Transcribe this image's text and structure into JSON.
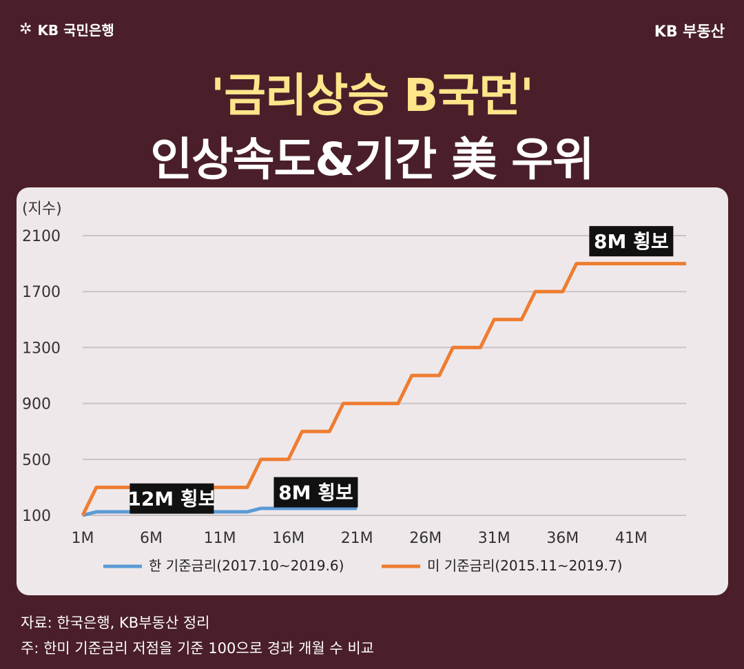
{
  "header": {
    "brand_left": "KB 국민은행",
    "brand_right": "KB 부동산",
    "title_line1": "'금리상승 B국면'",
    "title_line2": "인상속도&기간 美 우위"
  },
  "footer": {
    "source": "자료: 한국은행, KB부동산 정리",
    "note": "주: 한미 기준금리 저점을 기준 100으로 경과 개월 수 비교"
  },
  "colors": {
    "background": "#4a1f2a",
    "title_accent": "#fde58a",
    "korea": "#5b9bd5",
    "us": "#ed7d31"
  },
  "chart_data": {
    "type": "line",
    "ylabel": "(지수)",
    "ylim": [
      100,
      2100
    ],
    "yticks": [
      "100",
      "500",
      "900",
      "1300",
      "1700",
      "2100"
    ],
    "xticks": [
      "1M",
      "6M",
      "11M",
      "16M",
      "21M",
      "26M",
      "31M",
      "36M",
      "41M"
    ],
    "series": [
      {
        "name": "한 기준금리(2017.10~2019.6)",
        "x": [
          1,
          2,
          13,
          14,
          21
        ],
        "values": [
          100,
          125,
          125,
          150,
          150
        ]
      },
      {
        "name": "미 기준금리(2015.11~2019.7)",
        "x": [
          1,
          2,
          13,
          14,
          16,
          17,
          19,
          20,
          24,
          25,
          27,
          28,
          30,
          31,
          33,
          34,
          36,
          37,
          45
        ],
        "values": [
          100,
          300,
          300,
          500,
          500,
          700,
          700,
          900,
          900,
          1100,
          1100,
          1300,
          1300,
          1500,
          1500,
          1700,
          1700,
          1900,
          1900
        ]
      }
    ],
    "annotations": [
      {
        "text": "12M 횡보",
        "x": 7.5,
        "y": 220
      },
      {
        "text": "8M 횡보",
        "x": 18,
        "y": 265
      },
      {
        "text": "8M 횡보",
        "x": 41,
        "y": 2060
      }
    ],
    "grid": true,
    "legend": "bottom"
  }
}
